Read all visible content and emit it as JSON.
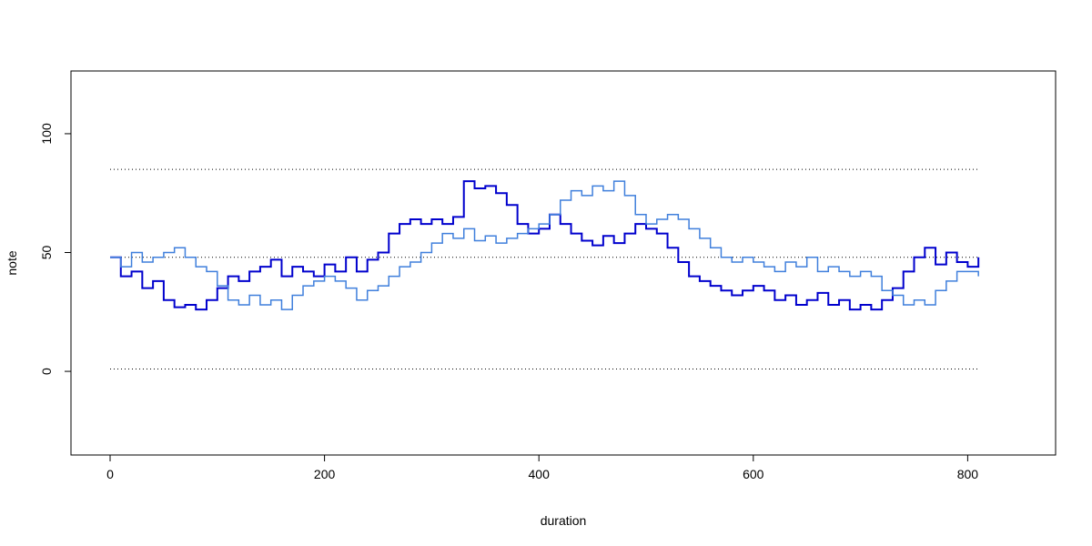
{
  "chart_data": {
    "type": "step",
    "xlabel": "duration",
    "ylabel": "note",
    "x": [
      0,
      10,
      20,
      30,
      40,
      50,
      60,
      70,
      80,
      90,
      100,
      110,
      120,
      130,
      140,
      150,
      160,
      170,
      180,
      190,
      200,
      210,
      220,
      230,
      240,
      250,
      260,
      270,
      280,
      290,
      300,
      310,
      320,
      330,
      340,
      350,
      360,
      370,
      380,
      390,
      400,
      410,
      420,
      430,
      440,
      450,
      460,
      470,
      480,
      490,
      500,
      510,
      520,
      530,
      540,
      550,
      560,
      570,
      580,
      590,
      600,
      610,
      620,
      630,
      640,
      650,
      660,
      670,
      680,
      690,
      700,
      710,
      720,
      730,
      740,
      750,
      760,
      770,
      780,
      790,
      800,
      810
    ],
    "series": [
      {
        "color": "#0000cd",
        "width": 2,
        "values": [
          48,
          40,
          42,
          35,
          38,
          30,
          27,
          28,
          26,
          30,
          35,
          40,
          38,
          42,
          44,
          47,
          40,
          44,
          42,
          40,
          45,
          42,
          48,
          42,
          47,
          50,
          58,
          62,
          64,
          62,
          64,
          62,
          65,
          80,
          77,
          78,
          75,
          70,
          62,
          58,
          60,
          66,
          62,
          58,
          55,
          53,
          57,
          54,
          58,
          62,
          60,
          58,
          52,
          46,
          40,
          38,
          36,
          34,
          32,
          34,
          36,
          34,
          30,
          32,
          28,
          30,
          33,
          28,
          30,
          26,
          28,
          26,
          30,
          35,
          42,
          48,
          52,
          45,
          50,
          46,
          44,
          48
        ]
      },
      {
        "color": "#3f7fdc",
        "width": 1.5,
        "values": [
          48,
          44,
          50,
          46,
          48,
          50,
          52,
          48,
          44,
          42,
          36,
          30,
          28,
          32,
          28,
          30,
          26,
          32,
          36,
          38,
          40,
          38,
          35,
          30,
          34,
          36,
          40,
          44,
          46,
          50,
          54,
          58,
          56,
          60,
          55,
          57,
          54,
          56,
          58,
          60,
          62,
          66,
          72,
          76,
          74,
          78,
          76,
          80,
          74,
          66,
          62,
          64,
          66,
          64,
          60,
          56,
          52,
          48,
          46,
          48,
          46,
          44,
          42,
          46,
          44,
          48,
          42,
          44,
          42,
          40,
          42,
          40,
          34,
          32,
          28,
          30,
          28,
          34,
          38,
          42,
          42,
          40
        ]
      }
    ],
    "hlines": [
      85,
      48,
      1
    ],
    "hline_xrange": [
      0,
      810
    ],
    "xlim": [
      -36.5,
      882
    ],
    "ylim": [
      -35.2,
      126.4
    ],
    "xticks": [
      0,
      200,
      400,
      600,
      800
    ],
    "yticks": [
      0,
      50,
      100
    ]
  }
}
